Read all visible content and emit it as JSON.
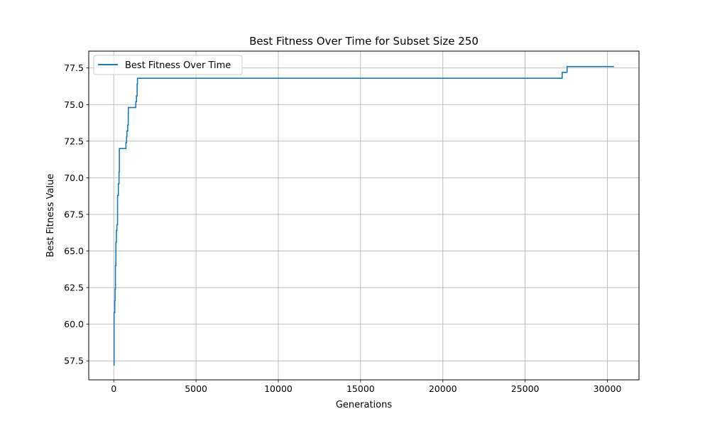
{
  "chart_data": {
    "type": "line",
    "title": "Best Fitness Over Time for Subset Size 250",
    "xlabel": "Generations",
    "ylabel": "Best Fitness Value",
    "xlim": [
      -1520,
      31920
    ],
    "ylim": [
      56.2,
      78.65
    ],
    "xticks": [
      0,
      5000,
      10000,
      15000,
      20000,
      25000,
      30000
    ],
    "yticks": [
      57.5,
      60.0,
      62.5,
      65.0,
      67.5,
      70.0,
      72.5,
      75.0,
      77.5
    ],
    "grid": true,
    "legend_position": "upper-left",
    "step": true,
    "color": "#1f77b4",
    "series": [
      {
        "name": "Best Fitness Over Time",
        "x": [
          0,
          20,
          60,
          80,
          100,
          130,
          160,
          190,
          230,
          280,
          320,
          340,
          740,
          780,
          800,
          850,
          880,
          890,
          1340,
          1380,
          1420,
          1440,
          27250,
          27550,
          30400
        ],
        "y": [
          57.2,
          60.8,
          61.6,
          62.4,
          64.0,
          65.6,
          66.4,
          66.8,
          68.8,
          69.6,
          70.4,
          72.0,
          72.4,
          72.8,
          73.2,
          73.6,
          74.4,
          74.8,
          75.2,
          75.6,
          76.4,
          76.8,
          77.2,
          77.6,
          77.6
        ]
      }
    ]
  }
}
